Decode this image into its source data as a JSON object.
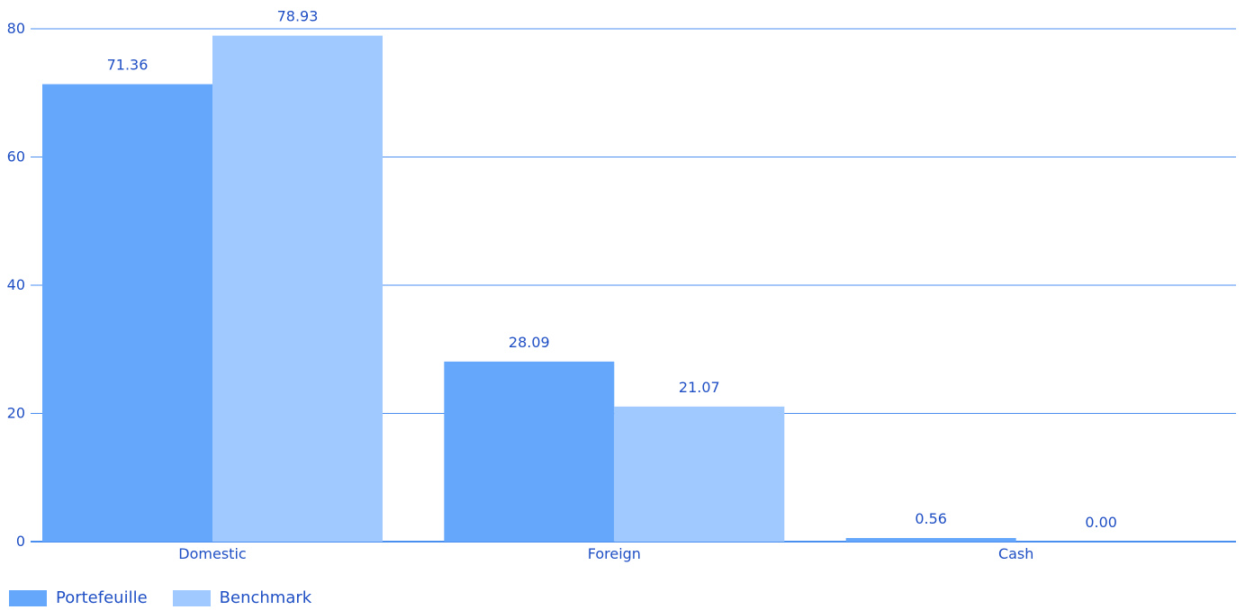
{
  "chart_data": {
    "type": "bar",
    "categories": [
      "Domestic",
      "Foreign",
      "Cash"
    ],
    "series": [
      {
        "name": "Portefeuille",
        "values": [
          71.36,
          28.09,
          0.56
        ],
        "labels": [
          "71.36",
          "28.09",
          "0.56"
        ],
        "color": "#64a7fb"
      },
      {
        "name": "Benchmark",
        "values": [
          78.93,
          21.07,
          0.0
        ],
        "labels": [
          "78.93",
          "21.07",
          "0.00"
        ],
        "color": "#a0caff"
      }
    ],
    "y_ticks": [
      "0",
      "20",
      "40",
      "60",
      "80"
    ],
    "ylim": [
      0,
      80
    ],
    "grid": true,
    "legend_position": "bottom-left",
    "colors": {
      "text": "#1f4fc4",
      "grid": "#4a8ef0",
      "axis": "#4a8ef0"
    }
  }
}
